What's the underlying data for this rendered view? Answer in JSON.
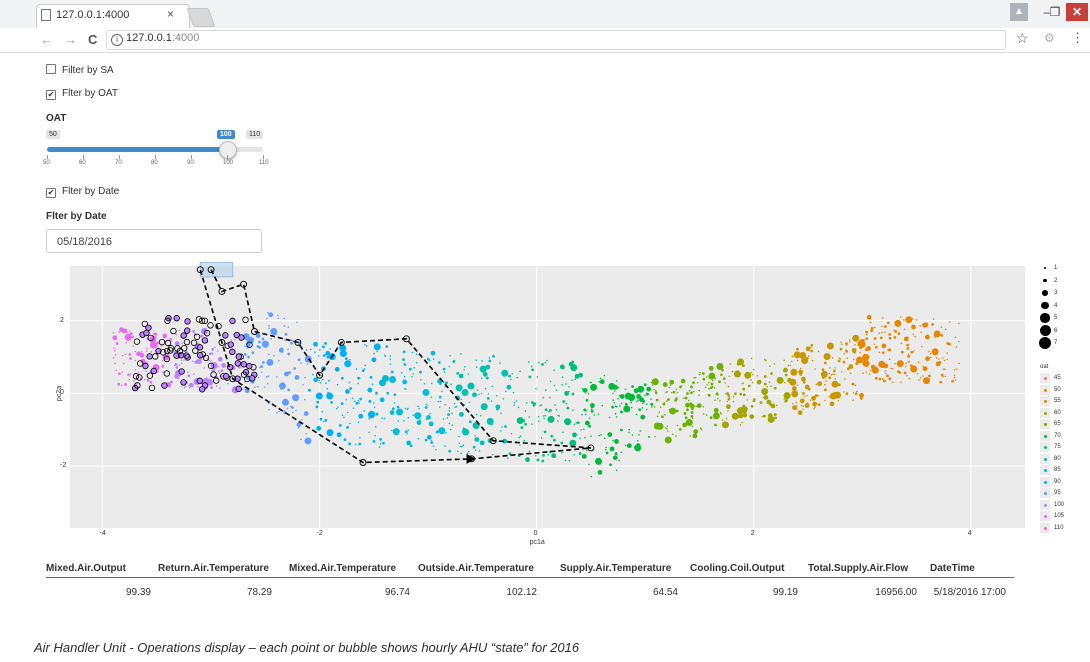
{
  "browser": {
    "tab_title": "127.0.0.1:4000",
    "tab_close": "×",
    "url_host": "127.0.0.1",
    "url_port": ":4000",
    "back": "←",
    "forward": "→",
    "reload": "C",
    "star": "☆",
    "menu": "⋮",
    "win_min": "–",
    "win_max": "❐",
    "win_close": "✕"
  },
  "filters": {
    "filter_sa": {
      "label": "Filter by SA",
      "checked": false
    },
    "filter_oat": {
      "label": "Flter by OAT",
      "checked": true
    },
    "oat_title": "OAT",
    "slider": {
      "min": 50,
      "max": 110,
      "value": 100,
      "min_label": "50",
      "max_label": "110",
      "value_label": "100",
      "ticks": [
        "50",
        "60",
        "70",
        "80",
        "90",
        "100",
        "110"
      ]
    },
    "filter_date": {
      "label": "Flter by Date",
      "checked": true
    },
    "date_title": "Flter by Date",
    "date_value": "05/18/2016"
  },
  "chart_data": {
    "type": "scatter",
    "xlabel": "pc1a",
    "ylabel": "pc2a",
    "xlim": [
      -4.3,
      4.5
    ],
    "ylim": [
      -3.7,
      3.5
    ],
    "x_ticks": [
      "-4",
      "-2",
      "0",
      "2",
      "4"
    ],
    "y_ticks": [
      "2",
      "0",
      "-2"
    ],
    "legend_size": {
      "title": "",
      "values": [
        "1",
        "2",
        "3",
        "4",
        "5",
        "6",
        "7"
      ]
    },
    "legend_color": {
      "title": "oat",
      "values": [
        "45",
        "50",
        "55",
        "60",
        "65",
        "70",
        "75",
        "80",
        "85",
        "90",
        "95",
        "100",
        "105",
        "110"
      ]
    },
    "oat_colors": {
      "45": "#f8766d",
      "50": "#e58700",
      "55": "#c99800",
      "60": "#a3a500",
      "65": "#6bb100",
      "70": "#00ba38",
      "75": "#00bf7d",
      "80": "#00c0af",
      "85": "#00bcd8",
      "90": "#00b0f6",
      "95": "#619cff",
      "100": "#b983ff",
      "105": "#e76bf3",
      "110": "#fd61d1"
    },
    "path": [
      [
        -3.0,
        3.4
      ],
      [
        -2.9,
        2.8
      ],
      [
        -2.7,
        3.0
      ],
      [
        -2.6,
        1.7
      ],
      [
        -2.2,
        1.4
      ],
      [
        -2.0,
        0.5
      ],
      [
        -1.8,
        1.4
      ],
      [
        -1.2,
        1.5
      ],
      [
        -0.4,
        -1.3
      ],
      [
        0.5,
        -1.5
      ],
      [
        -0.6,
        -1.8
      ],
      [
        -1.6,
        -1.9
      ],
      [
        -2.8,
        0.4
      ],
      [
        -2.9,
        1.4
      ],
      [
        -3.1,
        3.4
      ]
    ],
    "path_end": [
      -0.6,
      -1.8
    ],
    "selection_box": {
      "x": [
        -3.1,
        -2.8
      ],
      "y": [
        3.2,
        3.6
      ]
    }
  },
  "table": {
    "headers": [
      "Mixed.Air.Output",
      "Return.Air.Temperature",
      "Mixed.Air.Temperature",
      "Outside.Air.Temperature",
      "Supply.Air.Temperature",
      "Cooling.Coil.Output",
      "Total.Supply.Air.Flow",
      "DateTime"
    ],
    "row": [
      "99.39",
      "78.29",
      "96.74",
      "102.12",
      "64.54",
      "99.19",
      "16956.00",
      "5/18/2016 17:00"
    ]
  },
  "caption": "Air Handler Unit - Operations display – each point or bubble shows hourly  AHU “state” for 2016"
}
